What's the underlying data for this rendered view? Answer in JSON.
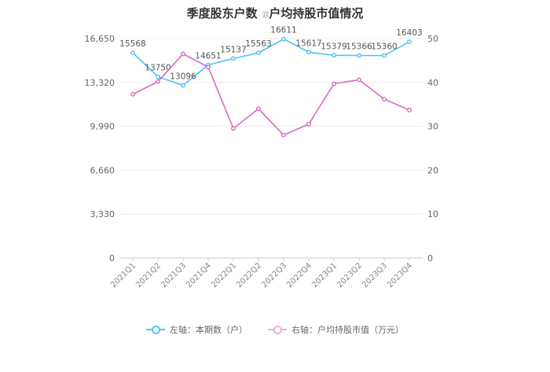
{
  "title_main": "季度股东户数",
  "title_watermark": "· 源",
  "title_rest": "户均持股市值情况",
  "chart_data": {
    "type": "line",
    "title": "季度股东户数、户均持股市值情况",
    "categories": [
      "2021Q1",
      "2021Q2",
      "2021Q3",
      "2021Q4",
      "2022Q1",
      "2022Q2",
      "2022Q3",
      "2022Q4",
      "2023Q1",
      "2023Q2",
      "2023Q3",
      "2023Q4"
    ],
    "series": [
      {
        "name": "左轴：本期数（户）",
        "axis": "left",
        "color": "#4fc3f7",
        "values": [
          15568,
          13750,
          13096,
          14651,
          15137,
          15563,
          16611,
          15617,
          15379,
          15366,
          15360,
          16403
        ],
        "labels": [
          "15568",
          "13750",
          "13096",
          "14651",
          "15137",
          "15563",
          "16611",
          "15617",
          "15379",
          "15366",
          "15360",
          "16403"
        ]
      },
      {
        "name": "右轴：户均持股市值（万元）",
        "axis": "right",
        "color": "#d96bbf",
        "values": [
          37.3,
          40.2,
          46.5,
          43.5,
          29.5,
          34.0,
          28.0,
          30.5,
          39.7,
          40.6,
          36.2,
          33.7
        ]
      }
    ],
    "left_axis": {
      "ticks": [
        "0",
        "3,330",
        "6,660",
        "9,990",
        "13,320",
        "16,650"
      ],
      "range": [
        0,
        16650
      ]
    },
    "right_axis": {
      "ticks": [
        "0",
        "10",
        "20",
        "30",
        "40",
        "50"
      ],
      "range": [
        0,
        50
      ]
    },
    "grid": true,
    "legend_position": "bottom"
  }
}
